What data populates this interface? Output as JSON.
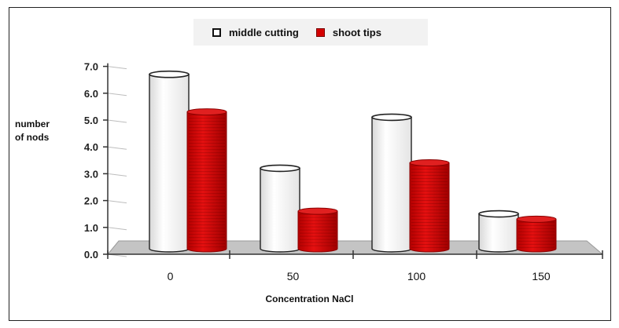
{
  "chart_data": {
    "type": "bar",
    "style": "3d-cylinder",
    "categories": [
      "0",
      "50",
      "100",
      "150"
    ],
    "series": [
      {
        "name": "middle cutting",
        "values": [
          6.5,
          3.0,
          4.9,
          1.3
        ],
        "color": "#ffffff"
      },
      {
        "name": "shoot tips",
        "values": [
          5.1,
          1.4,
          3.2,
          1.1
        ],
        "color": "#d40000"
      }
    ],
    "ylim": [
      0,
      7
    ],
    "yticks": [
      "0.0",
      "1.0",
      "2.0",
      "3.0",
      "4.0",
      "5.0",
      "6.0",
      "7.0"
    ],
    "ylabel_line1": "number",
    "ylabel_line2": "of nods",
    "xlabel": "Concentration NaCl",
    "legend_position": "top-center",
    "grid": false
  }
}
